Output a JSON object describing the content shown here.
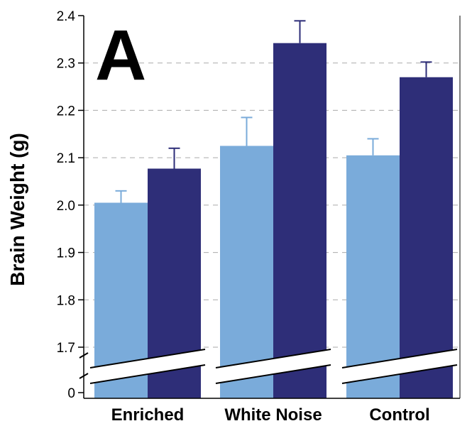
{
  "panel_label": "A",
  "colors": {
    "light_bar": "#7AABDA",
    "dark_bar": "#2E2E78",
    "grid": "#AAAAAA",
    "axis": "#000000"
  },
  "chart_data": {
    "type": "bar",
    "title": "",
    "xlabel": "",
    "ylabel": "Brain Weight (g)",
    "categories": [
      "Enriched",
      "White Noise",
      "Control"
    ],
    "series": [
      {
        "values": [
          2.005,
          2.125,
          2.105
        ],
        "errors": [
          0.025,
          0.06,
          0.035
        ]
      },
      {
        "values": [
          2.077,
          2.342,
          2.27
        ],
        "errors": [
          0.043,
          0.047,
          0.032
        ]
      }
    ],
    "ylim": [
      1.65,
      2.4
    ],
    "axis_break": true,
    "yticks": [
      {
        "value": 2.4,
        "label": "2.4"
      },
      {
        "value": 2.3,
        "label": "2.3"
      },
      {
        "value": 2.2,
        "label": "2.2"
      },
      {
        "value": 2.1,
        "label": "2.1"
      },
      {
        "value": 2.0,
        "label": "2.0"
      },
      {
        "value": 1.9,
        "label": "1.9"
      },
      {
        "value": 1.8,
        "label": "1.8"
      },
      {
        "value": 1.7,
        "label": "1.7"
      },
      {
        "value": 0,
        "label": "0"
      }
    ],
    "grid": true,
    "legend": "none"
  }
}
